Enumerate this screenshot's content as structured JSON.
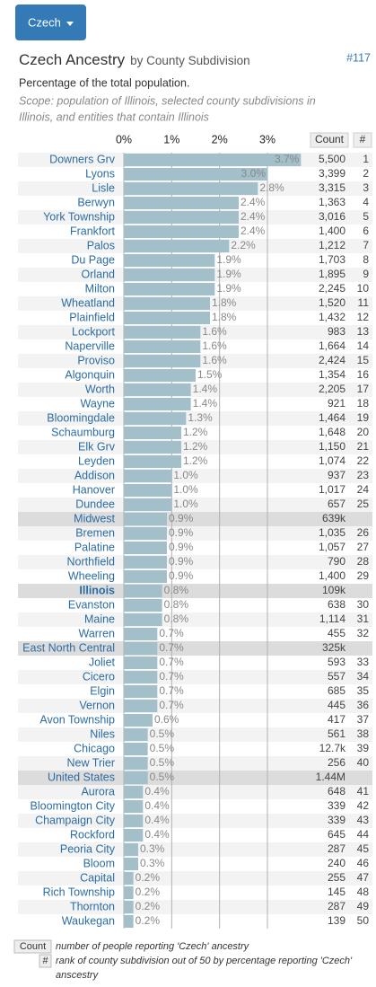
{
  "button": "Czech",
  "header": {
    "title": "Czech Ancestry",
    "subtitle": "by County Subdivision",
    "id": "#117"
  },
  "description": "Percentage of the total population.",
  "scope": [
    "Scope: population of Illinois, selected county subdivisions in",
    "Illinois, and entities that contain Illinois"
  ],
  "chart_data": {
    "type": "bar",
    "orientation": "horizontal",
    "color": "#a3bfca",
    "grid": true,
    "xlim": [
      0,
      3.9
    ],
    "xticks": [
      {
        "value": 0,
        "label": "0%"
      },
      {
        "value": 1,
        "label": "1%"
      },
      {
        "value": 2,
        "label": "2%"
      },
      {
        "value": 3,
        "label": "3%"
      }
    ],
    "categories": [
      "Downers Grv",
      "Lyons",
      "Lisle",
      "Berwyn",
      "York Township",
      "Frankfort",
      "Palos",
      "Du Page",
      "Orland",
      "Milton",
      "Wheatland",
      "Plainfield",
      "Lockport",
      "Naperville",
      "Proviso",
      "Algonquin",
      "Worth",
      "Wayne",
      "Bloomingdale",
      "Schaumburg",
      "Elk Grv",
      "Leyden",
      "Addison",
      "Hanover",
      "Dundee",
      "Midwest",
      "Bremen",
      "Palatine",
      "Northfield",
      "Wheeling",
      "Illinois",
      "Evanston",
      "Maine",
      "Warren",
      "East North Central",
      "Joliet",
      "Cicero",
      "Elgin",
      "Vernon",
      "Avon Township",
      "Niles",
      "Chicago",
      "New Trier",
      "United States",
      "Aurora",
      "Bloomington City",
      "Champaign City",
      "Rockford",
      "Peoria City",
      "Bloom",
      "Capital",
      "Rich Township",
      "Thornton",
      "Waukegan"
    ],
    "values": [
      3.7,
      3.0,
      2.8,
      2.4,
      2.4,
      2.4,
      2.2,
      1.9,
      1.9,
      1.9,
      1.8,
      1.8,
      1.6,
      1.6,
      1.6,
      1.5,
      1.4,
      1.4,
      1.3,
      1.2,
      1.2,
      1.2,
      1.0,
      1.0,
      1.0,
      0.9,
      0.9,
      0.9,
      0.9,
      0.9,
      0.8,
      0.8,
      0.8,
      0.7,
      0.7,
      0.7,
      0.7,
      0.7,
      0.7,
      0.6,
      0.5,
      0.5,
      0.5,
      0.5,
      0.4,
      0.4,
      0.4,
      0.4,
      0.3,
      0.3,
      0.2,
      0.2,
      0.2,
      0.2
    ],
    "value_labels": [
      "3.7%",
      "3.0%",
      "2.8%",
      "2.4%",
      "2.4%",
      "2.4%",
      "2.2%",
      "1.9%",
      "1.9%",
      "1.9%",
      "1.8%",
      "1.8%",
      "1.6%",
      "1.6%",
      "1.6%",
      "1.5%",
      "1.4%",
      "1.4%",
      "1.3%",
      "1.2%",
      "1.2%",
      "1.2%",
      "1.0%",
      "1.0%",
      "1.0%",
      "0.9%",
      "0.9%",
      "0.9%",
      "0.9%",
      "0.9%",
      "0.8%",
      "0.8%",
      "0.8%",
      "0.7%",
      "0.7%",
      "0.7%",
      "0.7%",
      "0.7%",
      "0.7%",
      "0.6%",
      "0.5%",
      "0.5%",
      "0.5%",
      "0.5%",
      "0.4%",
      "0.4%",
      "0.4%",
      "0.4%",
      "0.3%",
      "0.3%",
      "0.2%",
      "0.2%",
      "0.2%",
      "0.2%"
    ]
  },
  "table": {
    "columns": [
      "Count",
      "#"
    ],
    "counts": [
      "5,500",
      "3,399",
      "3,315",
      "1,363",
      "3,016",
      "1,400",
      "1,212",
      "1,703",
      "1,895",
      "2,245",
      "1,520",
      "1,432",
      "983",
      "1,664",
      "2,424",
      "1,354",
      "2,205",
      "921",
      "1,464",
      "1,648",
      "1,150",
      "1,074",
      "937",
      "1,017",
      "657",
      "639k",
      "1,035",
      "1,057",
      "790",
      "1,400",
      "109k",
      "638",
      "1,114",
      "455",
      "325k",
      "593",
      "557",
      "685",
      "445",
      "417",
      "561",
      "12.7k",
      "256",
      "1.44M",
      "648",
      "339",
      "339",
      "645",
      "287",
      "240",
      "255",
      "145",
      "287",
      "139"
    ],
    "ranks": [
      1,
      2,
      3,
      4,
      5,
      6,
      7,
      8,
      9,
      10,
      11,
      12,
      13,
      14,
      15,
      16,
      17,
      18,
      19,
      20,
      21,
      22,
      23,
      24,
      25,
      null,
      26,
      27,
      28,
      29,
      null,
      30,
      31,
      32,
      null,
      33,
      34,
      35,
      36,
      37,
      38,
      39,
      40,
      null,
      41,
      42,
      43,
      44,
      45,
      46,
      47,
      48,
      49,
      50
    ],
    "bold_rows": [
      30
    ]
  },
  "footnotes": [
    {
      "key": "Count",
      "text": [
        "number of people reporting 'Czech' ancestry"
      ]
    },
    {
      "key": "#",
      "text": [
        "rank of county subdivision out of 50 by percentage reporting 'Czech'",
        "anscestry"
      ]
    }
  ]
}
